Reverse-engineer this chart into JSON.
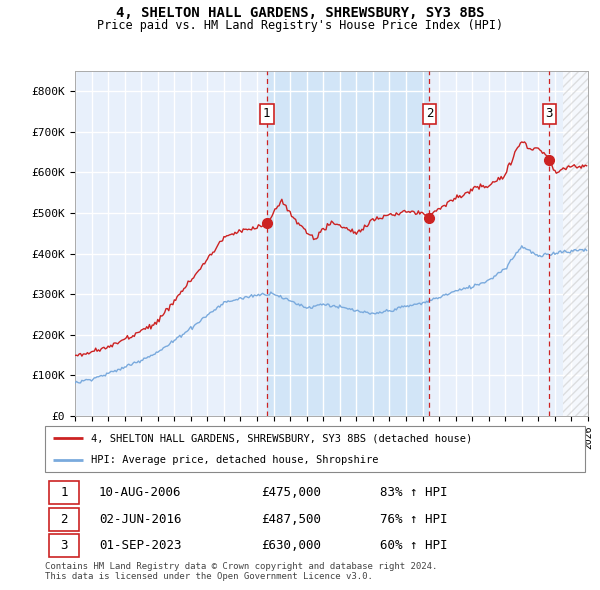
{
  "title": "4, SHELTON HALL GARDENS, SHREWSBURY, SY3 8BS",
  "subtitle": "Price paid vs. HM Land Registry's House Price Index (HPI)",
  "hpi_color": "#7aaadd",
  "price_color": "#cc2222",
  "background_color": "#e8f0fb",
  "highlight_color": "#d0e4f7",
  "ylim": [
    0,
    850000
  ],
  "yticks": [
    0,
    100000,
    200000,
    300000,
    400000,
    500000,
    600000,
    700000,
    800000
  ],
  "ytick_labels": [
    "£0",
    "£100K",
    "£200K",
    "£300K",
    "£400K",
    "£500K",
    "£600K",
    "£700K",
    "£800K"
  ],
  "sales": [
    {
      "date": 2006.58,
      "price": 475000,
      "label": "1"
    },
    {
      "date": 2016.42,
      "price": 487500,
      "label": "2"
    },
    {
      "date": 2023.67,
      "price": 630000,
      "label": "3"
    }
  ],
  "sale_table": [
    {
      "num": "1",
      "date": "10-AUG-2006",
      "price": "£475,000",
      "hpi": "83% ↑ HPI"
    },
    {
      "num": "2",
      "date": "02-JUN-2016",
      "price": "£487,500",
      "hpi": "76% ↑ HPI"
    },
    {
      "num": "3",
      "date": "01-SEP-2023",
      "price": "£630,000",
      "hpi": "60% ↑ HPI"
    }
  ],
  "legend_entries": [
    "4, SHELTON HALL GARDENS, SHREWSBURY, SY3 8BS (detached house)",
    "HPI: Average price, detached house, Shropshire"
  ],
  "footer": "Contains HM Land Registry data © Crown copyright and database right 2024.\nThis data is licensed under the Open Government Licence v3.0.",
  "xmin": 1995,
  "xmax": 2026
}
